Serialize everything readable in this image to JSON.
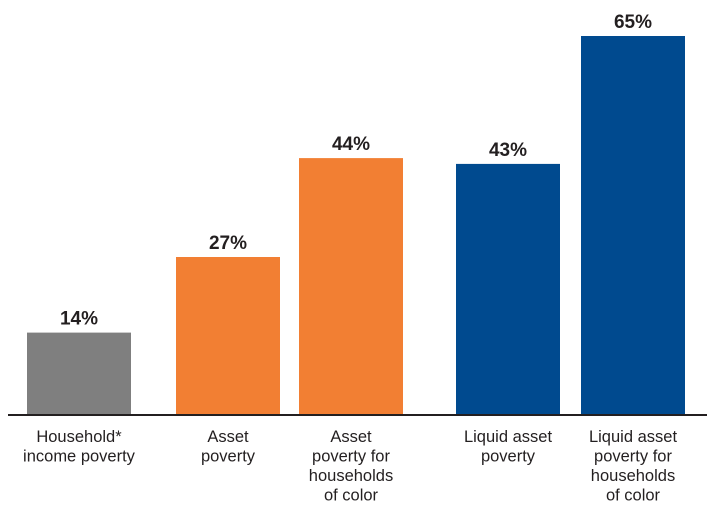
{
  "chart_data": {
    "type": "bar",
    "title": "",
    "xlabel": "",
    "ylabel": "",
    "ylim": [
      0,
      65
    ],
    "grid": false,
    "legend": "none",
    "value_suffix": "%",
    "categories": [
      [
        "Household*",
        "income poverty"
      ],
      [
        "Asset",
        "poverty"
      ],
      [
        "Asset",
        "poverty for",
        "households",
        "of color"
      ],
      [
        "Liquid asset",
        "poverty"
      ],
      [
        "Liquid asset",
        "poverty for",
        "households",
        "of color"
      ]
    ],
    "values": [
      14,
      27,
      44,
      43,
      65
    ],
    "value_labels": [
      "14%",
      "27%",
      "44%",
      "43%",
      "65%"
    ],
    "colors": [
      "#7f7f7f",
      "#f27f33",
      "#f27f33",
      "#004a8f",
      "#004a8f"
    ]
  }
}
